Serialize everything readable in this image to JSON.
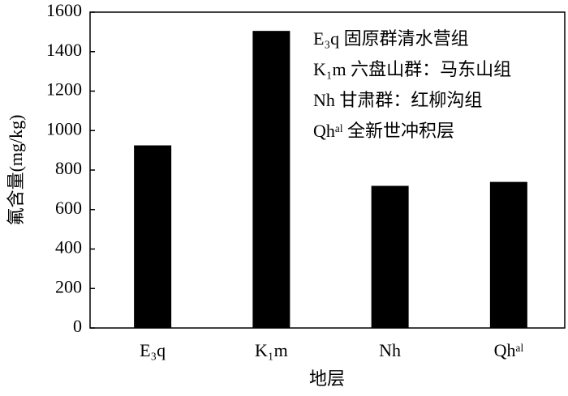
{
  "chart_data": {
    "type": "bar",
    "categories": [
      "E₃q",
      "K₁m",
      "Nh",
      "Qhᵃˡ"
    ],
    "values": [
      925,
      1505,
      720,
      740
    ],
    "color": "#000000",
    "ylim": [
      0,
      1600
    ],
    "yticks": [
      0,
      200,
      400,
      600,
      800,
      1000,
      1200,
      1400,
      1600
    ],
    "y_label": "氟含量(mg/kg)",
    "x_label": "地层",
    "annotations": [
      "E₃q 固原群清水营组",
      "K₁m 六盘山群：马东山组",
      "Nh 甘肃群：红柳沟组",
      "Qhᵃˡ 全新世冲积层"
    ]
  }
}
